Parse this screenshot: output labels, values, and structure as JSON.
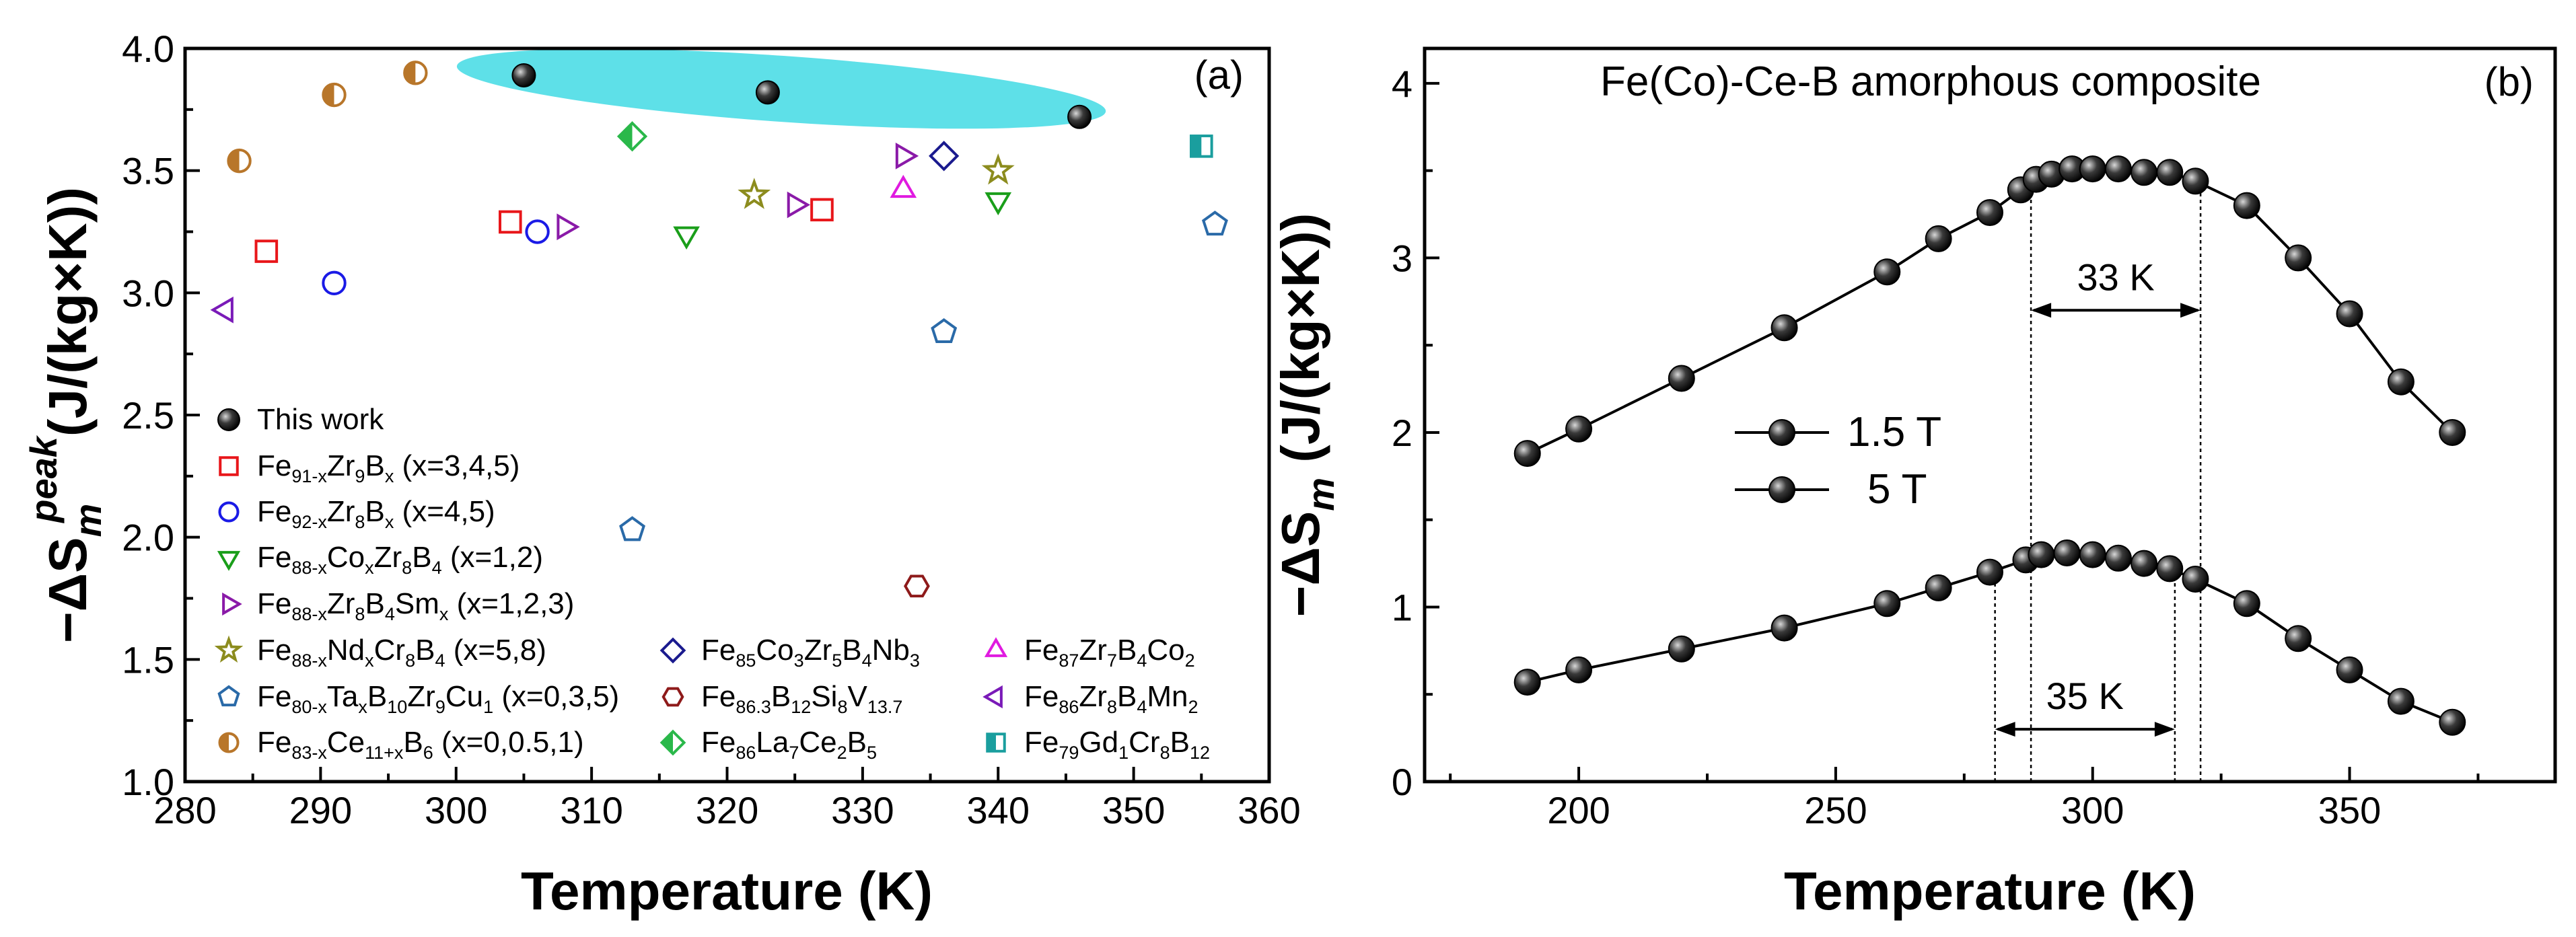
{
  "chart_data": [
    {
      "type": "scatter",
      "panel_label": "(a)",
      "xlabel": "Temperature (K)",
      "ylabel": "−ΔS_m^peak (J/(kg×K))",
      "xlim": [
        280,
        360
      ],
      "ylim": [
        1.0,
        4.0
      ],
      "xticks": [
        "280",
        "290",
        "300",
        "310",
        "320",
        "330",
        "340",
        "350",
        "360"
      ],
      "yticks": [
        "1.0",
        "1.5",
        "2.0",
        "2.5",
        "3.0",
        "3.5",
        "4.0"
      ],
      "highlight": {
        "shape": "ellipse",
        "color": "#5ee0e8",
        "x_range": [
          300,
          348
        ],
        "y_range": [
          3.7,
          3.97
        ]
      },
      "series": [
        {
          "name": "This work",
          "label": "This work",
          "marker": "sphere",
          "color": "#111111",
          "x": [
            305,
            323,
            346
          ],
          "y": [
            3.89,
            3.82,
            3.72
          ]
        },
        {
          "name": "Fe91-xZr9Bx",
          "label": [
            [
              "Fe",
              ""
            ],
            [
              "91-x",
              "sub"
            ],
            [
              "Zr",
              ""
            ],
            [
              "9",
              "sub"
            ],
            [
              "B",
              ""
            ],
            [
              "x",
              "sub"
            ],
            [
              " (x=3,4,5)",
              ""
            ]
          ],
          "marker": "square",
          "color": "#e8161a",
          "x": [
            286,
            304,
            327
          ],
          "y": [
            3.17,
            3.29,
            3.34
          ]
        },
        {
          "name": "Fe92-xZr8Bx",
          "label": [
            [
              "Fe",
              ""
            ],
            [
              "92-x",
              "sub"
            ],
            [
              "Zr",
              ""
            ],
            [
              "8",
              "sub"
            ],
            [
              "B",
              ""
            ],
            [
              "x",
              "sub"
            ],
            [
              " (x=4,5)",
              ""
            ]
          ],
          "marker": "circle",
          "color": "#1a1ae6",
          "x": [
            291,
            306
          ],
          "y": [
            3.04,
            3.25
          ]
        },
        {
          "name": "Fe88-xCoxZr8B4",
          "label": [
            [
              "Fe",
              ""
            ],
            [
              "88-x",
              "sub"
            ],
            [
              "Co",
              ""
            ],
            [
              "x",
              "sub"
            ],
            [
              "Zr",
              ""
            ],
            [
              "8",
              "sub"
            ],
            [
              "B",
              ""
            ],
            [
              "4",
              "sub"
            ],
            [
              " (x=1,2)",
              ""
            ]
          ],
          "marker": "triangle-down",
          "color": "#1a9e1a",
          "x": [
            317,
            340
          ],
          "y": [
            3.24,
            3.38
          ]
        },
        {
          "name": "Fe88-xZr8B4Smx",
          "label": [
            [
              "Fe",
              ""
            ],
            [
              "88-x",
              "sub"
            ],
            [
              "Zr",
              ""
            ],
            [
              "8",
              "sub"
            ],
            [
              "B",
              ""
            ],
            [
              "4",
              "sub"
            ],
            [
              "Sm",
              ""
            ],
            [
              "x",
              "sub"
            ],
            [
              " (x=1,2,3)",
              ""
            ]
          ],
          "marker": "triangle-right",
          "color": "#8a1aa8",
          "x": [
            308,
            325,
            333
          ],
          "y": [
            3.27,
            3.36,
            3.56
          ]
        },
        {
          "name": "Fe88-xNdxCr8B4",
          "label": [
            [
              "Fe",
              ""
            ],
            [
              "88-x",
              "sub"
            ],
            [
              "Nd",
              ""
            ],
            [
              "x",
              "sub"
            ],
            [
              "Cr",
              ""
            ],
            [
              "8",
              "sub"
            ],
            [
              "B",
              ""
            ],
            [
              "4",
              "sub"
            ],
            [
              " (x=5,8)",
              ""
            ]
          ],
          "marker": "star",
          "color": "#8c8c1e",
          "x": [
            322,
            340
          ],
          "y": [
            3.4,
            3.5
          ]
        },
        {
          "name": "Fe80-xTaxB10Zr9Cu1",
          "label": [
            [
              "Fe",
              ""
            ],
            [
              "80-x",
              "sub"
            ],
            [
              "Ta",
              ""
            ],
            [
              "x",
              "sub"
            ],
            [
              "B",
              ""
            ],
            [
              "10",
              "sub"
            ],
            [
              "Zr",
              ""
            ],
            [
              "9",
              "sub"
            ],
            [
              "Cu",
              ""
            ],
            [
              "1",
              "sub"
            ],
            [
              " (x=0,3,5)",
              ""
            ]
          ],
          "marker": "pentagon",
          "color": "#2a6aa8",
          "x": [
            313,
            336,
            356
          ],
          "y": [
            2.03,
            2.84,
            3.28
          ]
        },
        {
          "name": "Fe83-xCe11+xB6",
          "label": [
            [
              "Fe",
              ""
            ],
            [
              "83-x",
              "sub"
            ],
            [
              "Ce",
              ""
            ],
            [
              "11+x",
              "sub"
            ],
            [
              "B",
              ""
            ],
            [
              "6",
              "sub"
            ],
            [
              " (x=0,0.5,1)",
              ""
            ]
          ],
          "marker": "half-circle",
          "color": "#b8762a",
          "x": [
            284,
            291,
            297
          ],
          "y": [
            3.54,
            3.81,
            3.9
          ]
        },
        {
          "name": "Fe85Co3Zr5B4Nb3",
          "label": [
            [
              "Fe",
              ""
            ],
            [
              "85",
              "sub"
            ],
            [
              "Co",
              ""
            ],
            [
              "3",
              "sub"
            ],
            [
              "Zr",
              ""
            ],
            [
              "5",
              "sub"
            ],
            [
              "B",
              ""
            ],
            [
              "4",
              "sub"
            ],
            [
              "Nb",
              ""
            ],
            [
              "3",
              "sub"
            ]
          ],
          "marker": "diamond",
          "color": "#1a1a8e",
          "x": [
            336
          ],
          "y": [
            3.56
          ]
        },
        {
          "name": "Fe86.3B12Si8V13.7",
          "label": [
            [
              "Fe",
              ""
            ],
            [
              "86.3",
              "sub"
            ],
            [
              "B",
              ""
            ],
            [
              "12",
              "sub"
            ],
            [
              "Si",
              ""
            ],
            [
              "8",
              "sub"
            ],
            [
              "V",
              ""
            ],
            [
              "13.7",
              "sub"
            ]
          ],
          "marker": "hexagon",
          "color": "#8e1a1a",
          "x": [
            334
          ],
          "y": [
            1.8
          ]
        },
        {
          "name": "Fe86La7Ce2B5",
          "label": [
            [
              "Fe",
              ""
            ],
            [
              "86",
              "sub"
            ],
            [
              "La",
              ""
            ],
            [
              "7",
              "sub"
            ],
            [
              "Ce",
              ""
            ],
            [
              "2",
              "sub"
            ],
            [
              "B",
              ""
            ],
            [
              "5",
              "sub"
            ]
          ],
          "marker": "half-diamond",
          "color": "#2ab84a",
          "x": [
            313
          ],
          "y": [
            3.64
          ]
        },
        {
          "name": "Fe87Zr7B4Co2",
          "label": [
            [
              "Fe",
              ""
            ],
            [
              "87",
              "sub"
            ],
            [
              "Zr",
              ""
            ],
            [
              "7",
              "sub"
            ],
            [
              "B",
              ""
            ],
            [
              "4",
              "sub"
            ],
            [
              "Co",
              ""
            ],
            [
              "2",
              "sub"
            ]
          ],
          "marker": "triangle-up",
          "color": "#e01ae0",
          "x": [
            333
          ],
          "y": [
            3.42
          ]
        },
        {
          "name": "Fe86Zr8B4Mn2",
          "label": [
            [
              "Fe",
              ""
            ],
            [
              "86",
              "sub"
            ],
            [
              "Zr",
              ""
            ],
            [
              "8",
              "sub"
            ],
            [
              "B",
              ""
            ],
            [
              "4",
              "sub"
            ],
            [
              "Mn",
              ""
            ],
            [
              "2",
              "sub"
            ]
          ],
          "marker": "triangle-left",
          "color": "#7a1ab8",
          "x": [
            283
          ],
          "y": [
            2.93
          ]
        },
        {
          "name": "Fe79Gd1Cr8B12",
          "label": [
            [
              "Fe",
              ""
            ],
            [
              "79",
              "sub"
            ],
            [
              "Gd",
              ""
            ],
            [
              "1",
              "sub"
            ],
            [
              "Cr",
              ""
            ],
            [
              "8",
              "sub"
            ],
            [
              "B",
              ""
            ],
            [
              "12",
              "sub"
            ]
          ],
          "marker": "half-square",
          "color": "#1a9e9e",
          "x": [
            355
          ],
          "y": [
            3.6
          ]
        }
      ]
    },
    {
      "type": "line",
      "panel_label": "(b)",
      "title": "Fe(Co)-Ce-B amorphous composite",
      "xlabel": "Temperature (K)",
      "ylabel": "−ΔS_m (J/(kg×K))",
      "xlim": [
        170,
        390
      ],
      "ylim": [
        0,
        4.2
      ],
      "xticks": [
        "200",
        "250",
        "300",
        "350"
      ],
      "yticks": [
        "0",
        "1",
        "2",
        "3",
        "4"
      ],
      "series": [
        {
          "name": "1.5 T",
          "label": "1.5 T",
          "marker": "sphere",
          "x": [
            190,
            200,
            220,
            240,
            260,
            270,
            280,
            287,
            290,
            295,
            300,
            305,
            310,
            315,
            320,
            330,
            340,
            350,
            360,
            370
          ],
          "y": [
            0.57,
            0.64,
            0.76,
            0.88,
            1.02,
            1.11,
            1.2,
            1.27,
            1.3,
            1.31,
            1.3,
            1.28,
            1.25,
            1.22,
            1.16,
            1.02,
            0.82,
            0.64,
            0.46,
            0.34
          ]
        },
        {
          "name": "5 T",
          "label": "5 T",
          "marker": "sphere",
          "x": [
            190,
            200,
            220,
            240,
            260,
            270,
            280,
            286,
            289,
            292,
            296,
            300,
            305,
            310,
            315,
            320,
            330,
            340,
            350,
            360,
            370
          ],
          "y": [
            1.88,
            2.02,
            2.31,
            2.6,
            2.92,
            3.11,
            3.26,
            3.39,
            3.45,
            3.48,
            3.51,
            3.51,
            3.51,
            3.49,
            3.49,
            3.44,
            3.3,
            3.0,
            2.68,
            2.29,
            2.0
          ]
        }
      ],
      "annotations": [
        {
          "text": "33 K",
          "series": "5 T",
          "x_from": 288,
          "x_to": 321,
          "y": 2.7
        },
        {
          "text": "35 K",
          "series": "1.5 T",
          "x_from": 281,
          "x_to": 316,
          "y": 0.3
        }
      ]
    }
  ]
}
